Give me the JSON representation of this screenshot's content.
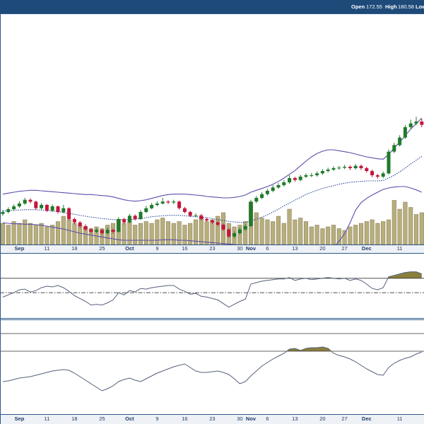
{
  "chart_data": {
    "type": "candlestick",
    "header": {
      "items": [
        {
          "label": "Open",
          "value": "172.55"
        },
        {
          "label": "High",
          "value": "180.58"
        },
        {
          "label": "Low"
        }
      ]
    },
    "categories": [
      null,
      null,
      null,
      "Sep",
      null,
      null,
      null,
      null,
      "11",
      null,
      null,
      null,
      null,
      "18",
      null,
      null,
      null,
      null,
      "25",
      null,
      null,
      null,
      null,
      "Oct",
      null,
      null,
      null,
      null,
      "9",
      null,
      null,
      null,
      null,
      "16",
      null,
      null,
      null,
      null,
      "23",
      null,
      null,
      null,
      null,
      "30",
      null,
      "Nov",
      null,
      null,
      "6",
      null,
      null,
      null,
      null,
      "13",
      null,
      null,
      null,
      null,
      "20",
      null,
      null,
      null,
      "27",
      null,
      null,
      null,
      "Dec",
      null,
      null,
      null,
      null,
      null,
      "11",
      null,
      null,
      null,
      null
    ],
    "open": [
      157.6,
      158.0,
      158.6,
      159.2,
      159.8,
      160.6,
      160.2,
      158.8,
      159.5,
      158.3,
      159.2,
      158.0,
      158.8,
      156.5,
      155.8,
      155.0,
      154.3,
      153.8,
      154.2,
      153.5,
      154.2,
      153.8,
      156.5,
      155.8,
      157.2,
      156.5,
      158.0,
      158.8,
      159.5,
      159.8,
      160.2,
      160.0,
      160.2,
      158.8,
      158.0,
      157.2,
      157.3,
      156.5,
      156.2,
      155.8,
      155.3,
      154.3,
      152.8,
      153.5,
      154.3,
      155.0,
      160.2,
      161.0,
      161.8,
      162.5,
      163.2,
      163.7,
      164.3,
      165.2,
      164.8,
      165.5,
      165.8,
      165.8,
      166.2,
      166.7,
      167.0,
      167.3,
      167.4,
      167.6,
      167.3,
      167.8,
      167.3,
      166.7,
      165.8,
      165.5,
      166.2,
      170.8,
      172.2,
      173.8,
      176.0,
      176.8,
      177.2
    ],
    "high": [
      158.4,
      159.0,
      159.6,
      160.3,
      161.0,
      160.9,
      160.4,
      159.9,
      159.7,
      159.6,
      159.4,
      159.5,
      159.0,
      156.8,
      156.1,
      155.4,
      154.6,
      154.6,
      154.4,
      154.7,
      154.5,
      156.9,
      156.8,
      157.6,
      157.5,
      158.4,
      159.3,
      159.9,
      160.3,
      161.0,
      160.5,
      160.6,
      160.4,
      159.1,
      158.3,
      157.7,
      157.6,
      156.8,
      156.5,
      156.1,
      155.6,
      154.6,
      153.9,
      154.7,
      155.4,
      160.6,
      161.4,
      162.2,
      162.9,
      163.7,
      164.1,
      164.8,
      165.8,
      165.5,
      165.9,
      166.2,
      166.3,
      166.6,
      167.1,
      167.4,
      167.7,
      167.8,
      168.0,
      167.9,
      168.2,
      168.1,
      167.6,
      167.0,
      166.1,
      166.6,
      171.3,
      172.7,
      174.3,
      176.5,
      177.6,
      178.2,
      177.8
    ],
    "low": [
      157.2,
      157.7,
      158.2,
      158.9,
      159.5,
      159.8,
      158.5,
      158.4,
      158.0,
      158.0,
      157.6,
      157.7,
      156.2,
      155.4,
      154.6,
      154.0,
      153.4,
      153.5,
      153.1,
      153.2,
      153.4,
      153.6,
      155.4,
      155.6,
      156.2,
      156.3,
      157.8,
      158.6,
      159.2,
      159.6,
      159.7,
      159.7,
      158.5,
      157.7,
      156.9,
      156.9,
      156.2,
      155.9,
      155.4,
      155.0,
      154.0,
      152.5,
      152.4,
      153.2,
      154.0,
      154.8,
      159.9,
      160.7,
      161.5,
      162.2,
      162.9,
      163.4,
      164.0,
      164.4,
      164.5,
      165.2,
      165.4,
      165.5,
      165.9,
      166.4,
      166.7,
      167.0,
      167.1,
      166.9,
      167.0,
      166.9,
      166.4,
      165.4,
      165.1,
      165.2,
      166.0,
      170.5,
      171.9,
      173.5,
      175.6,
      176.4,
      176.0
    ],
    "close": [
      158.0,
      158.6,
      159.2,
      159.8,
      160.6,
      160.2,
      158.8,
      159.5,
      158.3,
      159.2,
      158.0,
      158.8,
      156.5,
      155.8,
      155.0,
      154.3,
      153.8,
      154.2,
      153.5,
      154.2,
      153.8,
      156.5,
      155.8,
      157.2,
      156.5,
      158.0,
      158.8,
      159.5,
      159.8,
      160.2,
      160.0,
      160.2,
      158.8,
      158.0,
      157.2,
      157.3,
      156.5,
      156.2,
      155.8,
      155.3,
      154.3,
      152.8,
      153.5,
      154.3,
      155.0,
      160.2,
      161.0,
      161.8,
      162.5,
      163.2,
      163.7,
      164.3,
      165.2,
      164.8,
      165.5,
      165.8,
      165.8,
      166.2,
      166.7,
      167.0,
      167.3,
      167.4,
      167.6,
      167.3,
      167.8,
      167.3,
      166.7,
      165.8,
      165.5,
      166.2,
      170.8,
      172.2,
      173.8,
      176.0,
      176.8,
      177.2,
      176.5
    ],
    "up_color": "#1f7a2a",
    "down_color": "#c4173f",
    "ylim": [
      151.1,
      200
    ],
    "overlays": [
      {
        "color": "#5b4ea8",
        "style": "solid",
        "values": [
          161.8,
          162.0,
          162.2,
          162.4,
          162.5,
          162.6,
          162.6,
          162.5,
          162.4,
          162.3,
          162.2,
          162.1,
          162.0,
          161.9,
          161.8,
          161.7,
          161.7,
          161.6,
          161.5,
          161.4,
          161.2,
          160.9,
          160.6,
          160.4,
          160.3,
          160.4,
          160.6,
          160.9,
          161.2,
          161.5,
          161.7,
          161.8,
          161.8,
          161.8,
          161.7,
          161.6,
          161.5,
          161.3,
          161.2,
          161.1,
          161.0,
          161.0,
          161.1,
          161.3,
          161.6,
          162.2,
          162.6,
          163.0,
          163.4,
          163.9,
          164.5,
          165.2,
          166.0,
          166.8,
          167.8,
          168.8,
          169.7,
          170.4,
          170.9,
          171.2,
          171.2,
          171.0,
          170.8,
          170.6,
          170.3,
          170.0,
          169.7,
          169.5,
          169.3,
          169.2,
          170.2,
          171.6,
          172.8,
          174.2,
          175.6,
          176.8,
          177.9
        ]
      },
      {
        "color": "#2b4a9b",
        "style": "dotted",
        "values": [
          158.2,
          158.3,
          158.4,
          158.4,
          158.5,
          158.5,
          158.5,
          158.4,
          158.3,
          158.2,
          158.1,
          157.9,
          157.7,
          157.5,
          157.3,
          157.1,
          156.9,
          156.8,
          156.6,
          156.5,
          156.4,
          156.4,
          156.4,
          156.4,
          156.5,
          156.6,
          156.8,
          157.0,
          157.1,
          157.2,
          157.3,
          157.3,
          157.3,
          157.2,
          157.1,
          157.0,
          156.9,
          156.8,
          156.6,
          156.4,
          156.2,
          156.0,
          155.9,
          155.8,
          155.8,
          156.1,
          156.5,
          156.9,
          157.4,
          158.0,
          158.6,
          159.3,
          159.9,
          160.5,
          161.1,
          161.7,
          162.2,
          162.6,
          163.0,
          163.3,
          163.6,
          163.9,
          164.1,
          164.3,
          164.4,
          164.5,
          164.6,
          164.6,
          164.6,
          164.7,
          165.2,
          165.8,
          166.5,
          167.3,
          168.2,
          169.0,
          169.8
        ]
      },
      {
        "color": "#5b4ea8",
        "style": "solid",
        "values": [
          155.7,
          155.6,
          155.5,
          155.5,
          155.4,
          155.4,
          155.3,
          155.2,
          155.0,
          154.8,
          154.6,
          154.4,
          154.1,
          153.8,
          153.5,
          153.3,
          153.1,
          152.9,
          152.7,
          152.5,
          152.3,
          152.1,
          152.0,
          152.0,
          152.0,
          152.0,
          152.0,
          152.0,
          152.0,
          152.1,
          152.1,
          152.1,
          152.0,
          152.0,
          151.9,
          151.8,
          151.7,
          151.6,
          151.5,
          151.4,
          151.3,
          151.2,
          151.1,
          151.0,
          150.9,
          150.7,
          150.6,
          150.5,
          150.3,
          150.0,
          149.7,
          149.4,
          149.2,
          149.0,
          148.9,
          148.8,
          148.8,
          148.8,
          148.9,
          149.5,
          150.5,
          151.8,
          153.4,
          155.7,
          158.4,
          160.0,
          160.9,
          161.6,
          162.2,
          162.8,
          163.1,
          163.3,
          163.4,
          163.4,
          163.1,
          162.7,
          162.2
        ]
      }
    ],
    "volume": {
      "color": "#b8ae7c",
      "edge": "#7d7550",
      "ylim": [
        0,
        60
      ],
      "values": [
        12,
        11,
        13,
        12,
        14,
        12,
        11,
        12,
        10,
        11,
        13,
        16,
        14,
        12,
        11,
        10,
        9,
        10,
        9,
        11,
        12,
        14,
        12,
        13,
        11,
        12,
        13,
        12,
        14,
        15,
        13,
        12,
        13,
        11,
        12,
        14,
        15,
        13,
        14,
        16,
        18,
        12,
        10,
        11,
        13,
        24,
        18,
        15,
        14,
        13,
        16,
        12,
        20,
        14,
        15,
        13,
        10,
        11,
        9,
        10,
        11,
        9,
        8,
        10,
        11,
        12,
        13,
        14,
        12,
        13,
        14,
        25,
        20,
        24,
        21,
        17,
        18
      ]
    },
    "indicators": [
      {
        "color": "#55607a",
        "ylim": [
          15,
          105
        ],
        "levels": [
          {
            "value": 70,
            "style": "solid",
            "fill": "#8a7f3c"
          },
          {
            "value": 50,
            "style": "dashdot"
          }
        ],
        "values": [
          44,
          47,
          50,
          54,
          55,
          51,
          53,
          57,
          59,
          58,
          60,
          57,
          52,
          46,
          42,
          38,
          33,
          34,
          33,
          36,
          40,
          50,
          47,
          53,
          51,
          56,
          55,
          57,
          58,
          59,
          60,
          60,
          55,
          52,
          48,
          49,
          45,
          44,
          42,
          40,
          35,
          30,
          34,
          38,
          41,
          62,
          64,
          66,
          67,
          68,
          69,
          69,
          71,
          67,
          69,
          70,
          68,
          69,
          70,
          71,
          70,
          69,
          70,
          67,
          69,
          67,
          62,
          56,
          54,
          57,
          72,
          74,
          76,
          78,
          79,
          79,
          76
        ]
      },
      {
        "color": "#55607a",
        "ylim": [
          -256,
          280
        ],
        "levels": [
          {
            "value": 200,
            "style": "solid"
          },
          {
            "value": 100,
            "style": "solid",
            "fill": "#8a7f3c"
          }
        ],
        "values": [
          -72,
          -68,
          -60,
          -52,
          -48,
          -44,
          -36,
          -28,
          -20,
          -12,
          -8,
          -4,
          -8,
          -24,
          -44,
          -64,
          -84,
          -104,
          -124,
          -112,
          -96,
          -72,
          -60,
          -52,
          -64,
          -72,
          -56,
          -40,
          -24,
          -12,
          0,
          12,
          20,
          28,
          8,
          -12,
          -20,
          -20,
          -16,
          -12,
          -20,
          -32,
          -56,
          -84,
          -72,
          -40,
          -12,
          16,
          36,
          56,
          72,
          88,
          112,
          116,
          104,
          116,
          120,
          120,
          124,
          116,
          88,
          76,
          68,
          56,
          40,
          20,
          0,
          -16,
          -32,
          -36,
          8,
          32,
          48,
          60,
          68,
          84,
          96
        ]
      }
    ]
  }
}
